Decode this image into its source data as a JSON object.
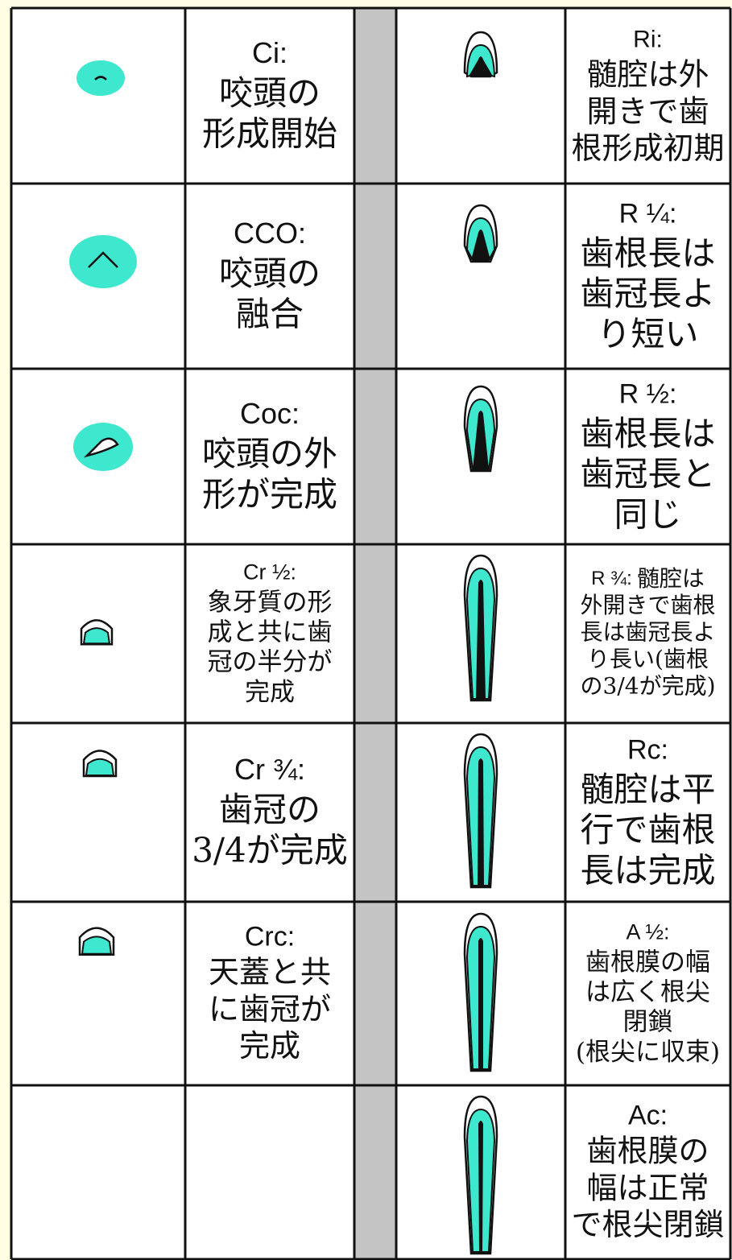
{
  "left": [
    {
      "code": "Ci:",
      "lines": [
        "咬頭の",
        "形成開始"
      ]
    },
    {
      "code": "CCO:",
      "lines": [
        "咬頭の",
        "融合"
      ]
    },
    {
      "code": "Coc:",
      "lines": [
        "咬頭の外",
        "形が完成"
      ]
    },
    {
      "code": "Cr ½:",
      "lines": [
        "象牙質の形",
        "成と共に歯",
        "冠の半分が",
        "完成"
      ]
    },
    {
      "code": "Cr ¾:",
      "lines": [
        "歯冠の",
        "3/4が完成"
      ]
    },
    {
      "code": "Crc:",
      "lines": [
        "天蓋と共",
        "に歯冠が",
        "完成"
      ]
    }
  ],
  "right": [
    {
      "code": "Ri:",
      "lines": [
        "髄腔は外",
        "開きで歯",
        "根形成初期"
      ]
    },
    {
      "code": "R ¼:",
      "lines": [
        "歯根長は",
        "歯冠長よ",
        "り短い"
      ]
    },
    {
      "code": "R ½:",
      "lines": [
        "歯根長は",
        "歯冠長と",
        "同じ"
      ]
    },
    {
      "code": "R ¾:",
      "lines": [
        "髄腔は",
        "外開きで歯根",
        "長は歯冠長よ",
        "り長い(歯根",
        "の3/4が完成)"
      ]
    },
    {
      "code": "Rc:",
      "lines": [
        "髄腔は平",
        "行で歯根",
        "長は完成"
      ]
    },
    {
      "code": "A ½:",
      "lines": [
        "歯根膜の幅",
        "は広く根尖",
        "閉鎖",
        "(根尖に収束)"
      ]
    },
    {
      "code": "Ac:",
      "lines": [
        "歯根膜の",
        "幅は正常",
        "で根尖閉鎖"
      ]
    }
  ]
}
